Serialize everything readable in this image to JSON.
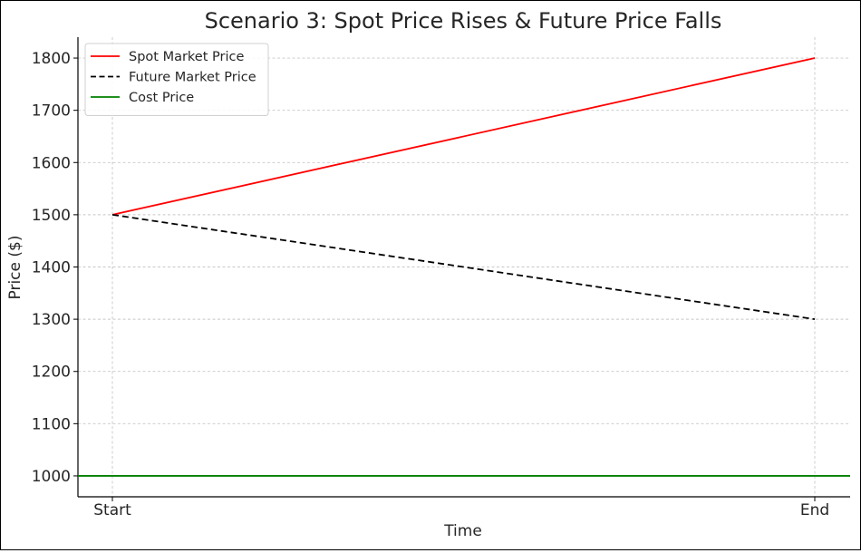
{
  "chart_data": {
    "type": "line",
    "title": "Scenario 3: Spot Price Rises & Future Price Falls",
    "xlabel": "Time",
    "ylabel": "Price ($)",
    "categories": [
      "Start",
      "End"
    ],
    "yticks": [
      1000,
      1100,
      1200,
      1300,
      1400,
      1500,
      1600,
      1700,
      1800
    ],
    "ylim": [
      960,
      1840
    ],
    "grid": true,
    "legend_position": "top-left",
    "series": [
      {
        "name": "Spot Market Price",
        "values": [
          1500,
          1800
        ],
        "color": "#ff0000",
        "style": "solid"
      },
      {
        "name": "Future Market Price",
        "values": [
          1500,
          1300
        ],
        "color": "#000000",
        "style": "dashed"
      }
    ],
    "horizontal_lines": [
      {
        "name": "Cost Price",
        "value": 1000,
        "color": "#008000",
        "style": "solid"
      }
    ]
  }
}
